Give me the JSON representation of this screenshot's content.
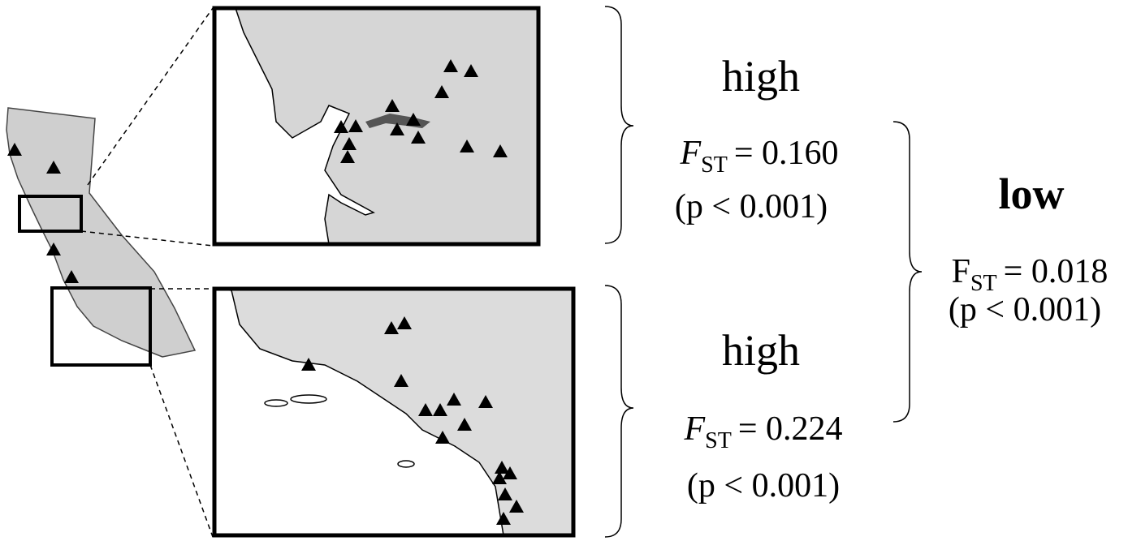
{
  "groups": [
    {
      "label": "high",
      "stat_symbol": "F",
      "stat_subscript": "ST",
      "stat_value": "= 0.160",
      "p_value": "(p < 0.001)"
    },
    {
      "label": "high",
      "stat_symbol": "F",
      "stat_subscript": "ST",
      "stat_value": "= 0.224",
      "p_value": "(p < 0.001)"
    }
  ],
  "overall": {
    "label": "low",
    "stat_symbol": "F",
    "stat_subscript": "ST",
    "stat_value": "= 0.018",
    "p_value": "(p < 0.001)"
  }
}
